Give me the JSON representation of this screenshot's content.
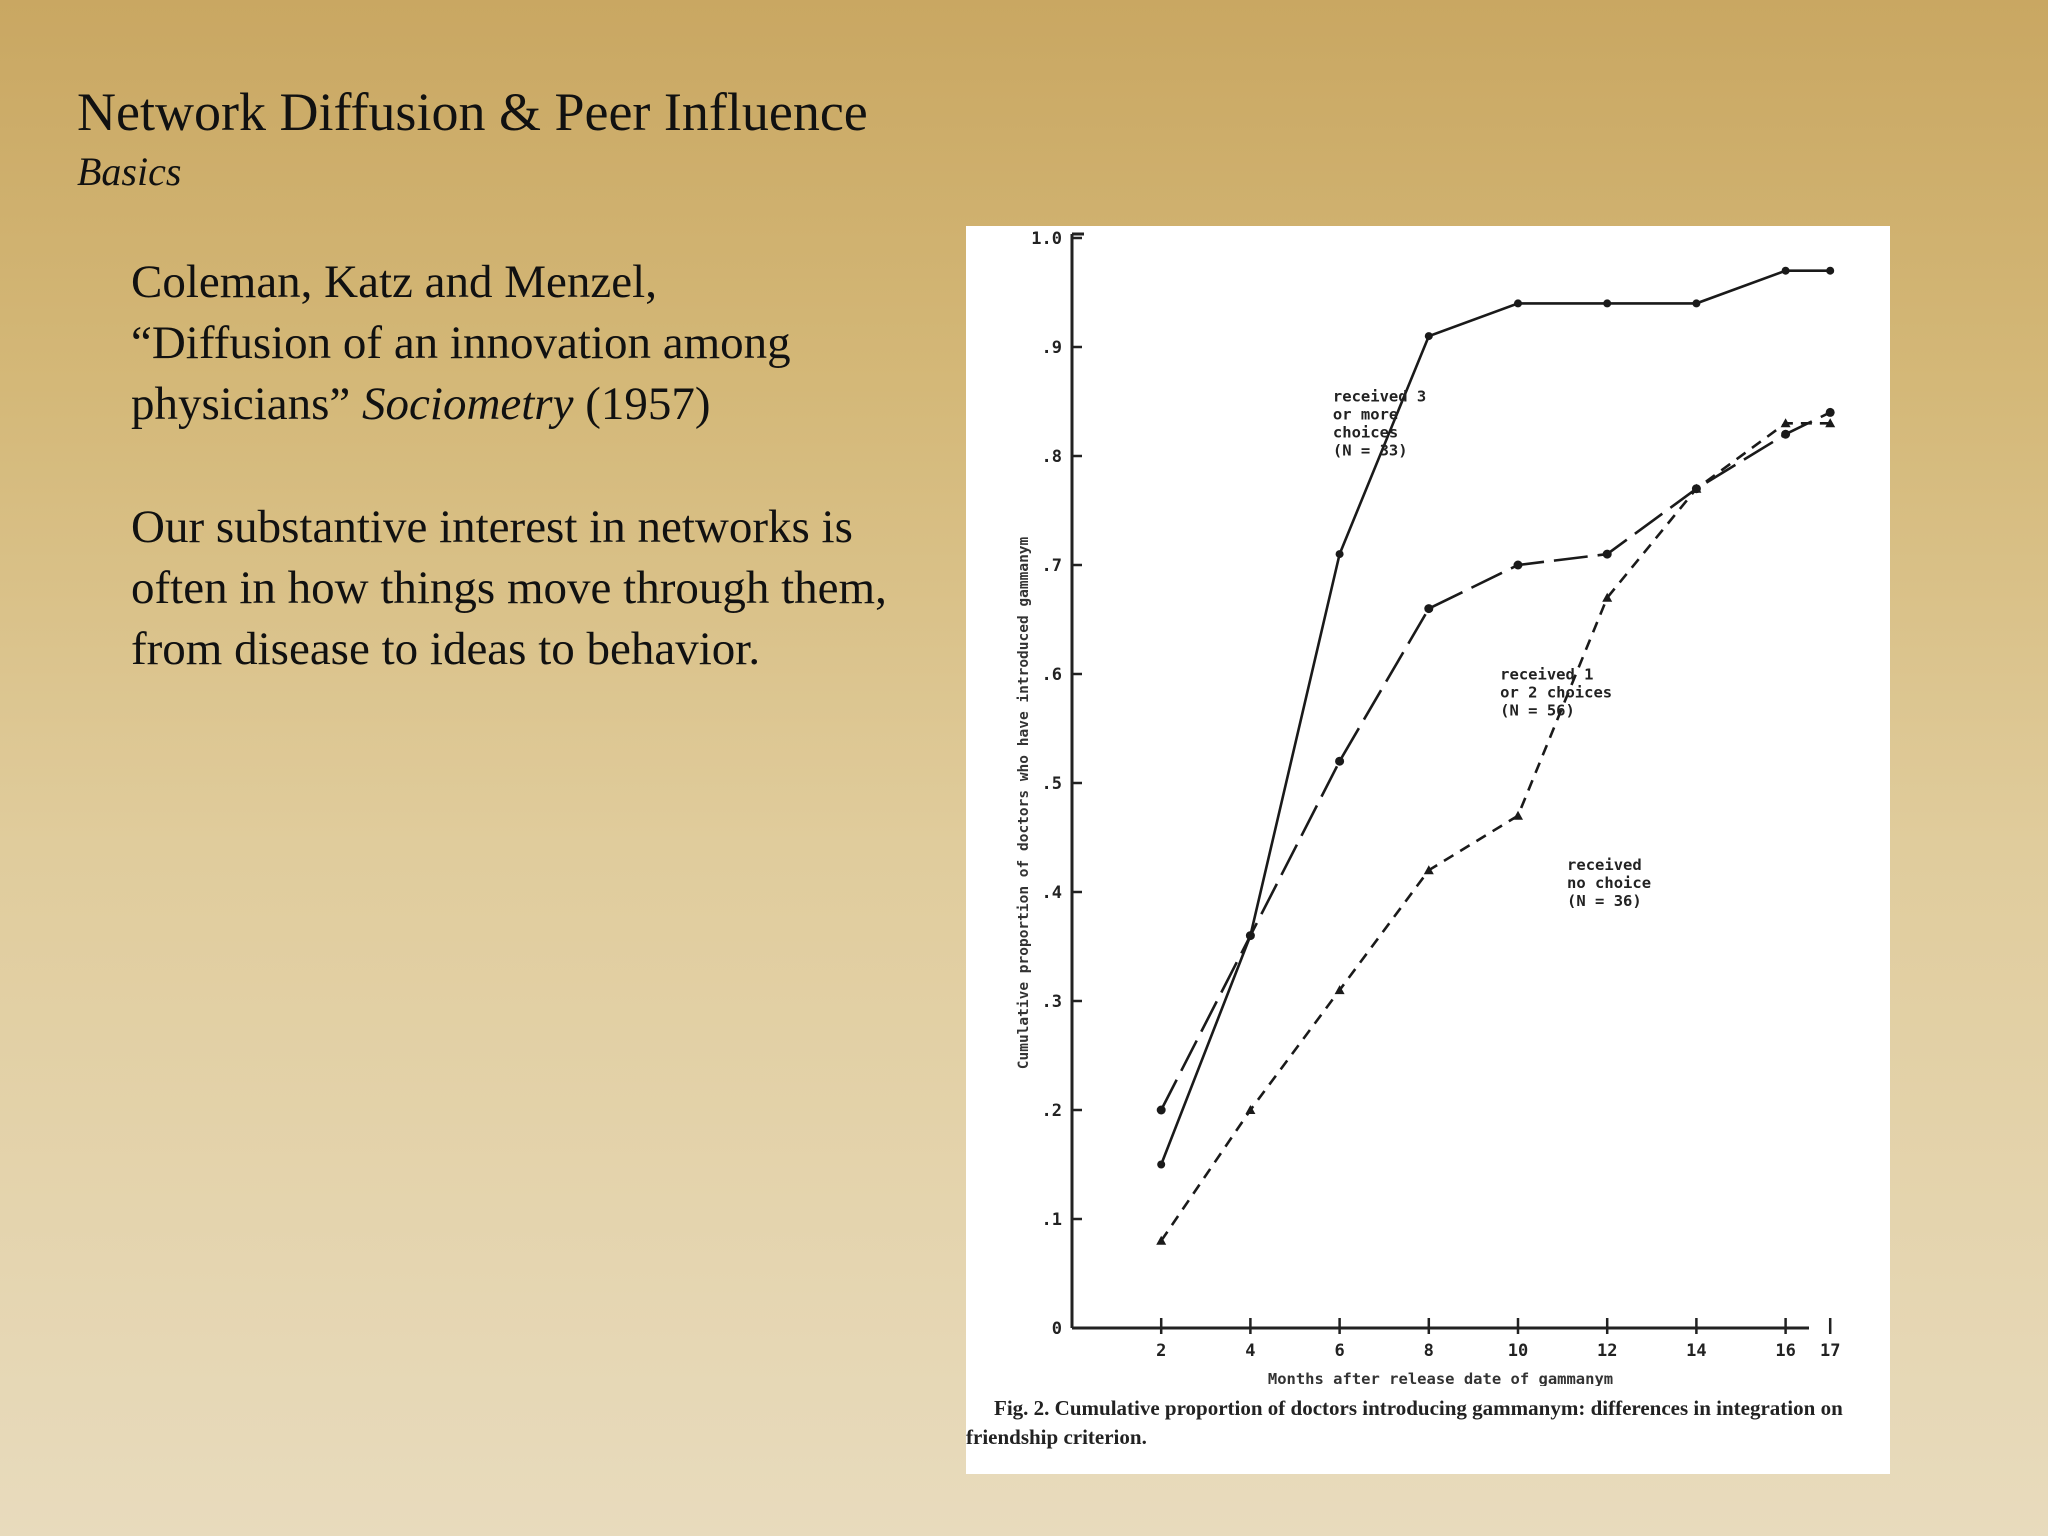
{
  "slide": {
    "title": "Network Diffusion & Peer Influence",
    "subtitle": "Basics"
  },
  "body": {
    "citation_authors": "Coleman, Katz and Menzel,",
    "citation_title": "“Diffusion of an innovation among physicians”",
    "citation_journal": "Sociometry",
    "citation_year": "(1957)",
    "paragraph": "Our substantive interest in networks is often in how things move through them, from disease to ideas to behavior."
  },
  "chart_data": {
    "type": "line",
    "xlabel": "Months after release date of gammanym",
    "ylabel": "Cumulative proportion of doctors who have introduced gammanym",
    "caption_lead": "Fig. 2.",
    "caption": "Cumulative proportion of doctors introducing gammanym: differences in integration on friendship criterion.",
    "x_ticks": [
      "2",
      "4",
      "6",
      "8",
      "10",
      "12",
      "14",
      "16",
      "17"
    ],
    "y_ticks": [
      "0",
      ".1",
      ".2",
      ".3",
      ".4",
      ".5",
      ".6",
      ".7",
      ".8",
      ".9",
      "1.0"
    ],
    "xlim": [
      0,
      17.5
    ],
    "ylim": [
      0,
      1.0
    ],
    "grid": false,
    "x": [
      2,
      4,
      6,
      8,
      10,
      12,
      14,
      16,
      17
    ],
    "series": [
      {
        "label_lines": [
          "received 3",
          "or more",
          "choices",
          "(N = 33)"
        ],
        "style": "solid",
        "marker": "dot",
        "values": [
          0.15,
          0.36,
          0.71,
          0.91,
          0.94,
          0.94,
          0.94,
          0.97,
          0.97
        ]
      },
      {
        "label_lines": [
          "received 1",
          "or 2 choices",
          "(N = 56)"
        ],
        "style": "long-dash",
        "marker": "circle",
        "values": [
          0.2,
          0.36,
          0.52,
          0.66,
          0.7,
          0.71,
          0.77,
          0.82,
          0.84
        ]
      },
      {
        "label_lines": [
          "received",
          "no choice",
          "(N = 36)"
        ],
        "style": "short-dash",
        "marker": "triangle",
        "values": [
          0.08,
          0.2,
          0.31,
          0.42,
          0.47,
          0.67,
          0.77,
          0.83,
          0.83
        ]
      }
    ]
  }
}
